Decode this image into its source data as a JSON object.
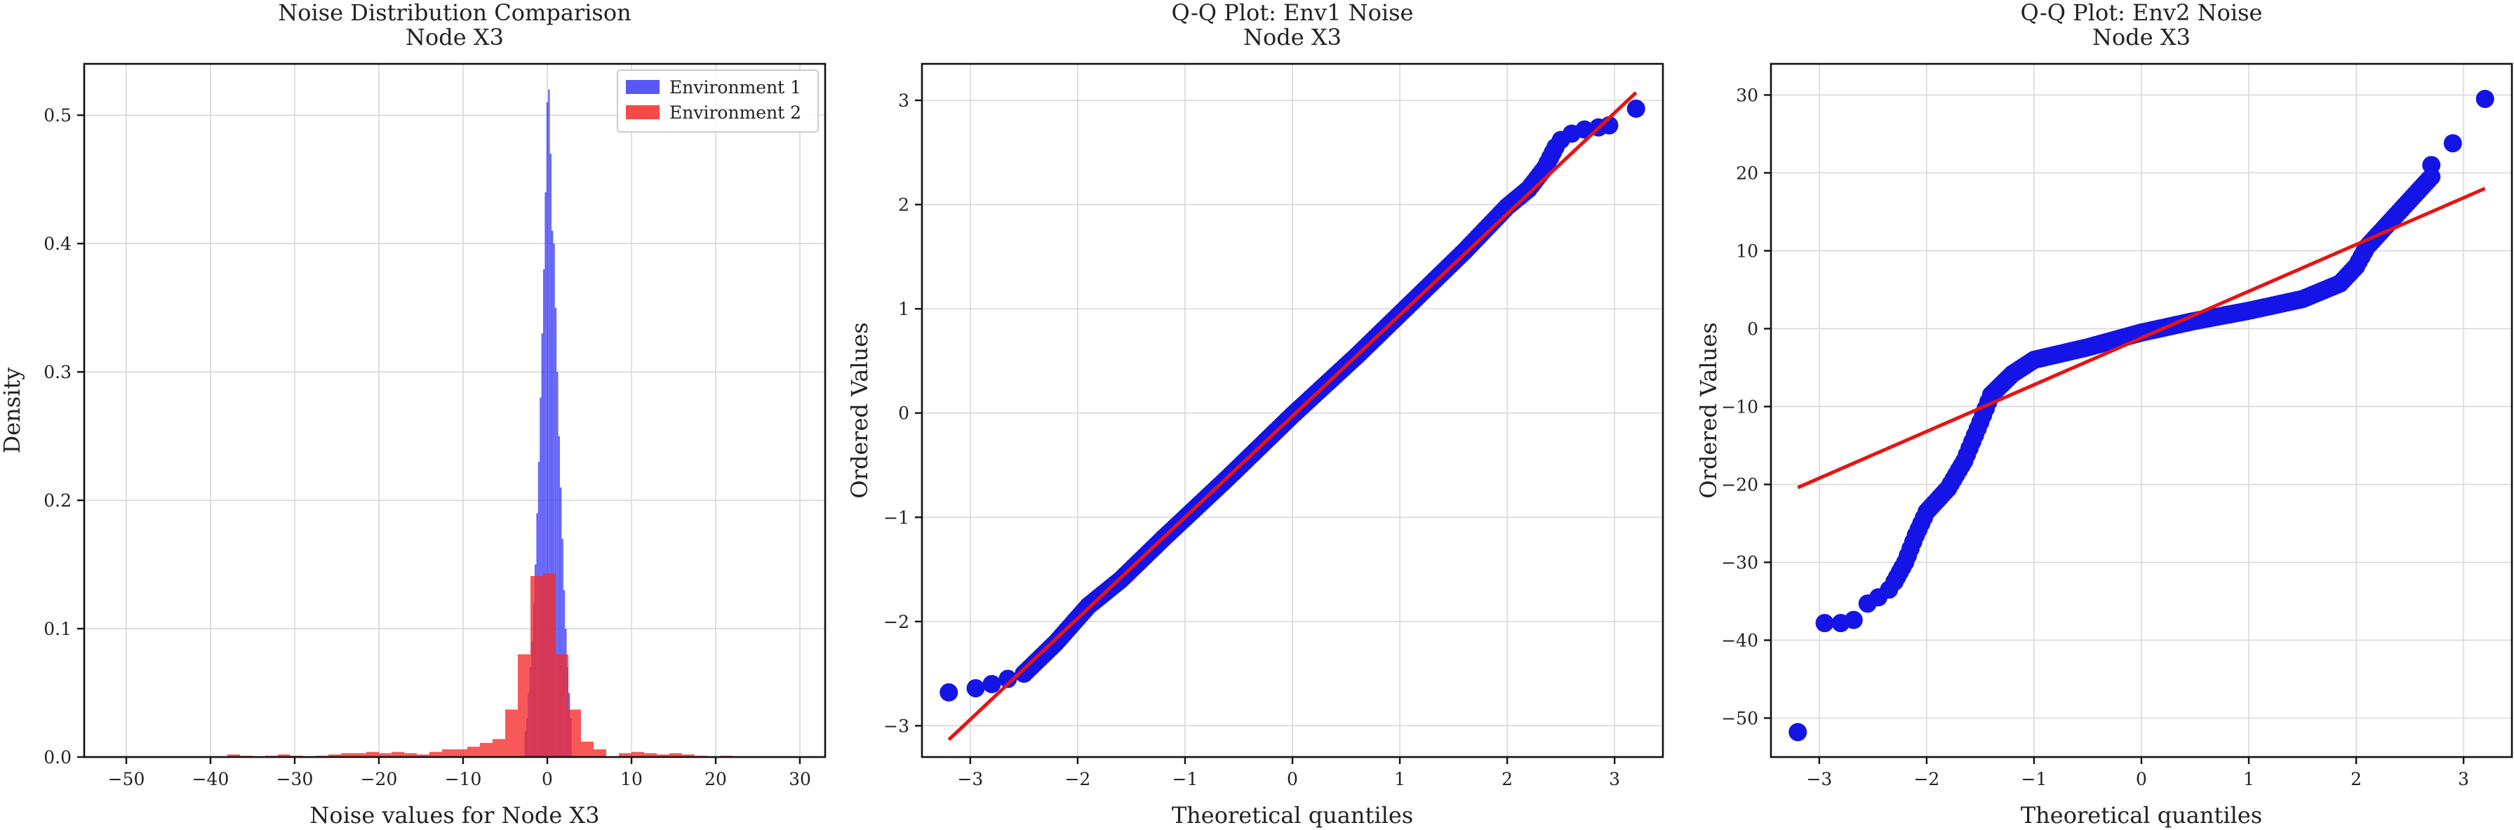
{
  "chart_data": [
    {
      "type": "histogram",
      "title": "Noise Distribution Comparison\nNode X3",
      "title_lines": [
        "Noise Distribution Comparison",
        "Node X3"
      ],
      "xlabel": "Noise values for Node X3",
      "ylabel": "Density",
      "xlim": [
        -55,
        33
      ],
      "ylim": [
        0,
        0.54
      ],
      "xticks": [
        -50,
        -40,
        -30,
        -20,
        -10,
        0,
        10,
        20,
        30
      ],
      "yticks": [
        0.0,
        0.1,
        0.2,
        0.3,
        0.4,
        0.5
      ],
      "grid": true,
      "legend_position": "top-right",
      "series": [
        {
          "name": "Environment 1",
          "color": "#3b3bf5",
          "bin_edges": [
            -2.7,
            -2.5,
            -2.3,
            -2.1,
            -1.9,
            -1.7,
            -1.5,
            -1.3,
            -1.1,
            -0.9,
            -0.7,
            -0.5,
            -0.3,
            -0.1,
            0.1,
            0.3,
            0.5,
            0.7,
            0.9,
            1.1,
            1.3,
            1.5,
            1.7,
            1.9,
            2.1,
            2.3,
            2.5,
            2.7,
            2.9
          ],
          "densities": [
            0.02,
            0.03,
            0.05,
            0.07,
            0.09,
            0.12,
            0.15,
            0.19,
            0.23,
            0.28,
            0.33,
            0.38,
            0.44,
            0.51,
            0.52,
            0.47,
            0.41,
            0.4,
            0.35,
            0.3,
            0.25,
            0.21,
            0.17,
            0.13,
            0.1,
            0.07,
            0.05,
            0.03
          ]
        },
        {
          "name": "Environment 2",
          "color": "#f52a2a",
          "bin_edges": [
            -38,
            -36.5,
            -35,
            -33.5,
            -32,
            -30.5,
            -29,
            -27.5,
            -26,
            -24.5,
            -23,
            -21.5,
            -20,
            -18.5,
            -17,
            -15.5,
            -14,
            -12.5,
            -11,
            -9.5,
            -8,
            -6.5,
            -5,
            -3.5,
            -2,
            -0.5,
            1,
            2.5,
            4,
            5.5,
            7,
            8.5,
            10,
            11.5,
            13,
            14.5,
            16,
            17.5,
            19,
            20.5,
            22
          ],
          "densities": [
            0.002,
            0.001,
            0,
            0.001,
            0.002,
            0.001,
            0,
            0.001,
            0.002,
            0.003,
            0.003,
            0.004,
            0.003,
            0.004,
            0.003,
            0.002,
            0.004,
            0.006,
            0.006,
            0.008,
            0.011,
            0.014,
            0.037,
            0.08,
            0.141,
            0.143,
            0.08,
            0.037,
            0.012,
            0.006,
            0,
            0.003,
            0.004,
            0.003,
            0.002,
            0.003,
            0.002,
            0.001,
            0,
            0.001
          ]
        }
      ]
    },
    {
      "type": "scatter",
      "title": "Q-Q Plot: Env1 Noise\nNode X3",
      "title_lines": [
        "Q-Q Plot: Env1 Noise",
        "Node X3"
      ],
      "xlabel": "Theoretical quantiles",
      "ylabel": "Ordered Values",
      "xlim": [
        -3.45,
        3.45
      ],
      "ylim": [
        -3.3,
        3.35
      ],
      "xticks": [
        -3,
        -2,
        -1,
        0,
        1,
        2,
        3
      ],
      "yticks": [
        -3,
        -2,
        -1,
        0,
        1,
        2,
        3
      ],
      "grid": true,
      "point_color": "#1414e6",
      "line_color": "#e61414",
      "fit_line": {
        "slope": 0.97,
        "intercept": -0.03,
        "x_range": [
          -3.2,
          3.2
        ]
      },
      "tail_points": [
        [
          -3.2,
          -2.68
        ],
        [
          -2.95,
          -2.64
        ],
        [
          -2.8,
          -2.6
        ],
        [
          -2.65,
          -2.55
        ],
        [
          -2.5,
          -2.5
        ],
        [
          2.5,
          2.62
        ],
        [
          2.6,
          2.68
        ],
        [
          2.72,
          2.72
        ],
        [
          2.85,
          2.74
        ],
        [
          2.95,
          2.76
        ],
        [
          3.2,
          2.92
        ]
      ],
      "body_curve": [
        [
          -2.5,
          -2.5
        ],
        [
          -2.2,
          -2.2
        ],
        [
          -1.9,
          -1.85
        ],
        [
          -1.6,
          -1.6
        ],
        [
          -1.2,
          -1.2
        ],
        [
          -0.6,
          -0.62
        ],
        [
          0,
          -0.02
        ],
        [
          0.6,
          0.55
        ],
        [
          1.2,
          1.15
        ],
        [
          1.6,
          1.55
        ],
        [
          2.0,
          1.98
        ],
        [
          2.2,
          2.15
        ],
        [
          2.35,
          2.35
        ],
        [
          2.45,
          2.55
        ]
      ]
    },
    {
      "type": "scatter",
      "title": "Q-Q Plot: Env2 Noise\nNode X3",
      "title_lines": [
        "Q-Q Plot: Env2 Noise",
        "Node X3"
      ],
      "xlabel": "Theoretical quantiles",
      "ylabel": "Ordered Values",
      "xlim": [
        -3.45,
        3.45
      ],
      "ylim": [
        -55,
        34
      ],
      "xticks": [
        -3,
        -2,
        -1,
        0,
        1,
        2,
        3
      ],
      "yticks": [
        -50,
        -40,
        -30,
        -20,
        -10,
        0,
        10,
        20,
        30
      ],
      "grid": true,
      "point_color": "#1414e6",
      "line_color": "#e61414",
      "fit_line": {
        "slope": 6.0,
        "intercept": -1.2,
        "x_range": [
          -3.2,
          3.2
        ]
      },
      "tail_points": [
        [
          -3.2,
          -51.8
        ],
        [
          -2.95,
          -37.8
        ],
        [
          -2.8,
          -37.8
        ],
        [
          -2.68,
          -37.4
        ],
        [
          -2.55,
          -35.3
        ],
        [
          -2.45,
          -34.5
        ],
        [
          -2.35,
          -33.5
        ],
        [
          2.7,
          21.0
        ],
        [
          2.9,
          23.8
        ],
        [
          3.2,
          29.5
        ]
      ],
      "body_curve": [
        [
          -2.3,
          -32.5
        ],
        [
          -2.2,
          -30
        ],
        [
          -2.1,
          -26.5
        ],
        [
          -2.0,
          -23.5
        ],
        [
          -1.8,
          -20.5
        ],
        [
          -1.65,
          -17
        ],
        [
          -1.5,
          -12
        ],
        [
          -1.4,
          -8.5
        ],
        [
          -1.2,
          -5.8
        ],
        [
          -1.0,
          -4.0
        ],
        [
          -0.5,
          -2.4
        ],
        [
          0,
          -0.5
        ],
        [
          0.5,
          1.0
        ],
        [
          1.0,
          2.3
        ],
        [
          1.5,
          3.8
        ],
        [
          1.85,
          5.8
        ],
        [
          2.0,
          8.0
        ],
        [
          2.1,
          10.5
        ],
        [
          2.3,
          13.5
        ],
        [
          2.5,
          16.5
        ],
        [
          2.7,
          19.5
        ]
      ]
    }
  ]
}
